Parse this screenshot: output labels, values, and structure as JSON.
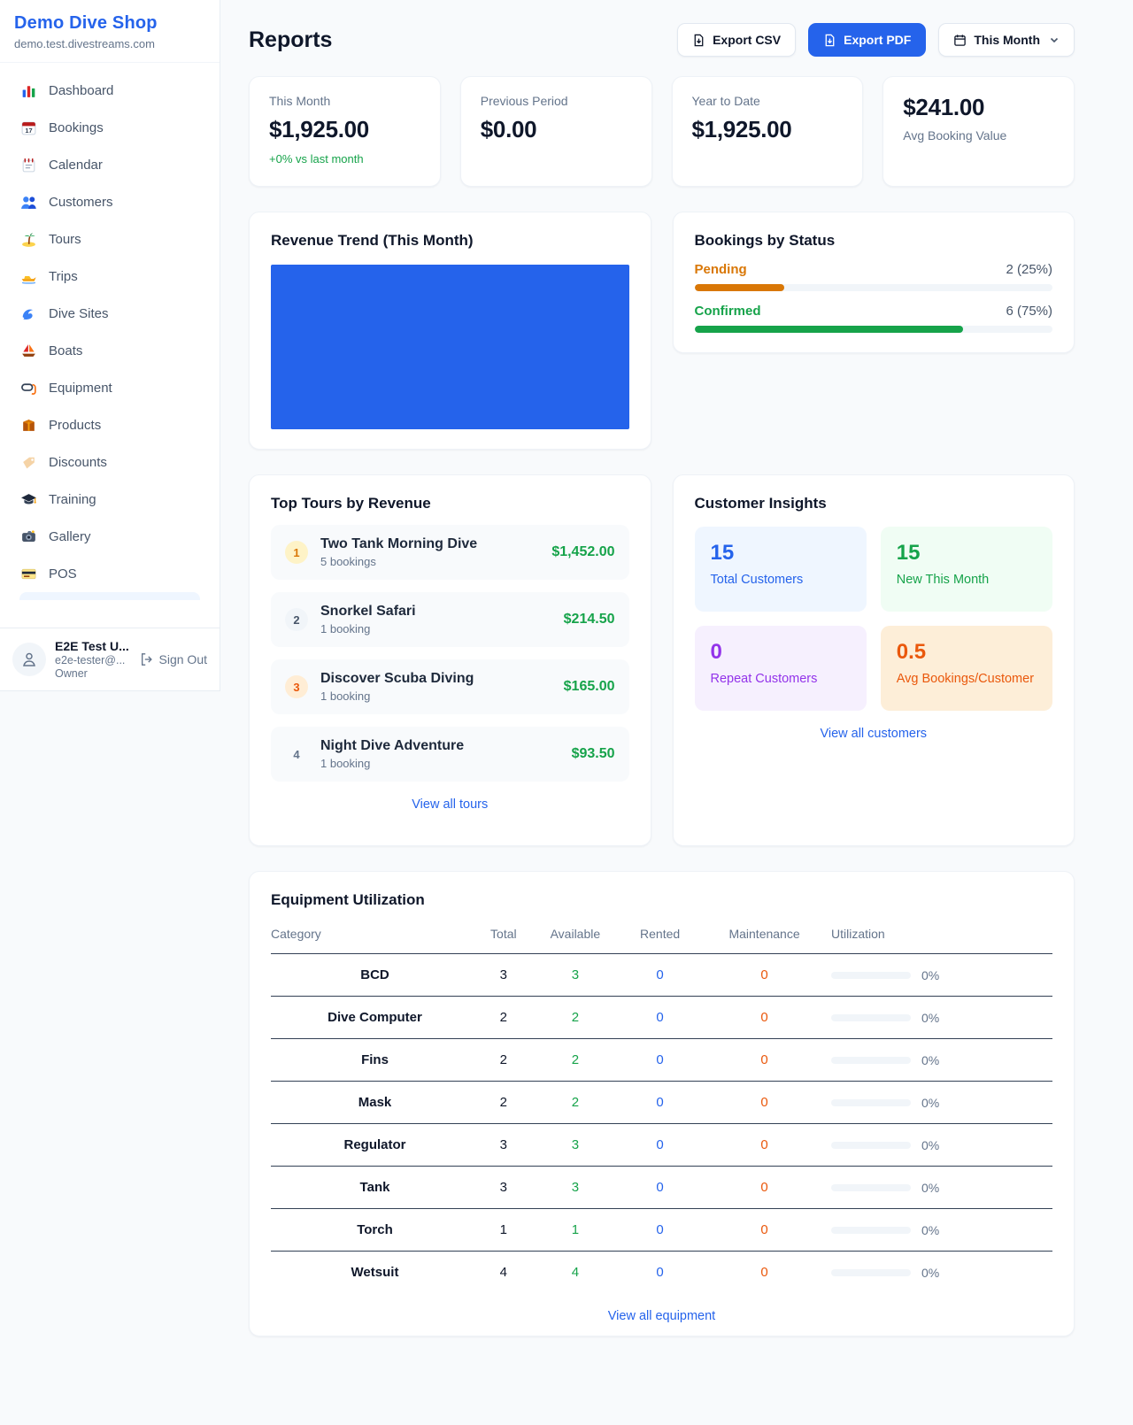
{
  "colors": {
    "accent": "#2563eb",
    "green": "#16a34a",
    "orange": "#ea580c",
    "amber": "#d97706",
    "purple": "#9333ea",
    "muted": "#64748b"
  },
  "sidebar": {
    "brand": {
      "name": "Demo Dive Shop",
      "domain": "demo.test.divestreams.com"
    },
    "items": [
      {
        "label": "Dashboard",
        "icon": "bar-chart"
      },
      {
        "label": "Bookings",
        "icon": "calendar-date"
      },
      {
        "label": "Calendar",
        "icon": "spiral-calendar"
      },
      {
        "label": "Customers",
        "icon": "people"
      },
      {
        "label": "Tours",
        "icon": "island"
      },
      {
        "label": "Trips",
        "icon": "speedboat"
      },
      {
        "label": "Dive Sites",
        "icon": "wave"
      },
      {
        "label": "Boats",
        "icon": "sailboat"
      },
      {
        "label": "Equipment",
        "icon": "dive-mask"
      },
      {
        "label": "Products",
        "icon": "package"
      },
      {
        "label": "Discounts",
        "icon": "tag"
      },
      {
        "label": "Training",
        "icon": "graduation-cap"
      },
      {
        "label": "Gallery",
        "icon": "camera"
      },
      {
        "label": "POS",
        "icon": "credit-card"
      }
    ],
    "user": {
      "name": "E2E Test U...",
      "email": "e2e-tester@...",
      "role": "Owner",
      "sign_out_label": "Sign Out"
    }
  },
  "header": {
    "title": "Reports",
    "export_csv_label": "Export CSV",
    "export_pdf_label": "Export PDF",
    "period_label": "This Month"
  },
  "stats": [
    {
      "label": "This Month",
      "value": "$1,925.00",
      "delta": "+0% vs last month",
      "value_first": false
    },
    {
      "label": "Previous Period",
      "value": "$0.00",
      "delta": "",
      "value_first": false
    },
    {
      "label": "Year to Date",
      "value": "$1,925.00",
      "delta": "",
      "value_first": false
    },
    {
      "label": "Avg Booking Value",
      "value": "$241.00",
      "delta": "",
      "value_first": true
    }
  ],
  "revenue_trend": {
    "title": "Revenue Trend (This Month)",
    "bar_color": "#2563eb"
  },
  "chart_data": {
    "type": "bar",
    "title": "Revenue Trend (This Month)",
    "categories": [
      "This Month"
    ],
    "values": [
      1925.0
    ],
    "xlabel": "",
    "ylabel": "",
    "note": "single full-width solid bar, no axes or labels shown"
  },
  "bookings_by_status": {
    "title": "Bookings by Status",
    "rows": [
      {
        "label": "Pending",
        "count_text": "2 (25%)",
        "percent": 25,
        "color": "#d97706"
      },
      {
        "label": "Confirmed",
        "count_text": "6 (75%)",
        "percent": 75,
        "color": "#16a34a"
      }
    ]
  },
  "top_tours": {
    "title": "Top Tours by Revenue",
    "link_label": "View all tours",
    "rows": [
      {
        "rank": "1",
        "name": "Two Tank Morning Dive",
        "bookings": "5 bookings",
        "amount": "$1,452.00",
        "badge_bg": "#fef3c7",
        "badge_fg": "#d97706"
      },
      {
        "rank": "2",
        "name": "Snorkel Safari",
        "bookings": "1 booking",
        "amount": "$214.50",
        "badge_bg": "#f1f5f9",
        "badge_fg": "#475569"
      },
      {
        "rank": "3",
        "name": "Discover Scuba Diving",
        "bookings": "1 booking",
        "amount": "$165.00",
        "badge_bg": "#ffedd5",
        "badge_fg": "#ea580c"
      },
      {
        "rank": "4",
        "name": "Night Dive Adventure",
        "bookings": "1 booking",
        "amount": "$93.50",
        "badge_bg": "transparent",
        "badge_fg": "#64748b"
      }
    ]
  },
  "customer_insights": {
    "title": "Customer Insights",
    "link_label": "View all customers",
    "tiles": [
      {
        "value": "15",
        "label": "Total Customers",
        "fg": "#2563eb",
        "bg": "#eff6ff"
      },
      {
        "value": "15",
        "label": "New This Month",
        "fg": "#16a34a",
        "bg": "#f0fdf4"
      },
      {
        "value": "0",
        "label": "Repeat Customers",
        "fg": "#9333ea",
        "bg": "#f6f0fe"
      },
      {
        "value": "0.5",
        "label": "Avg Bookings/Customer",
        "fg": "#ea580c",
        "bg": "#fdeed8"
      }
    ]
  },
  "equipment": {
    "title": "Equipment Utilization",
    "link_label": "View all equipment",
    "columns": [
      "Category",
      "Total",
      "Available",
      "Rented",
      "Maintenance",
      "Utilization"
    ],
    "rows": [
      {
        "category": "BCD",
        "total": "3",
        "available": "3",
        "rented": "0",
        "maintenance": "0",
        "utilization_pct": 0,
        "utilization_text": "0%"
      },
      {
        "category": "Dive Computer",
        "total": "2",
        "available": "2",
        "rented": "0",
        "maintenance": "0",
        "utilization_pct": 0,
        "utilization_text": "0%"
      },
      {
        "category": "Fins",
        "total": "2",
        "available": "2",
        "rented": "0",
        "maintenance": "0",
        "utilization_pct": 0,
        "utilization_text": "0%"
      },
      {
        "category": "Mask",
        "total": "2",
        "available": "2",
        "rented": "0",
        "maintenance": "0",
        "utilization_pct": 0,
        "utilization_text": "0%"
      },
      {
        "category": "Regulator",
        "total": "3",
        "available": "3",
        "rented": "0",
        "maintenance": "0",
        "utilization_pct": 0,
        "utilization_text": "0%"
      },
      {
        "category": "Tank",
        "total": "3",
        "available": "3",
        "rented": "0",
        "maintenance": "0",
        "utilization_pct": 0,
        "utilization_text": "0%"
      },
      {
        "category": "Torch",
        "total": "1",
        "available": "1",
        "rented": "0",
        "maintenance": "0",
        "utilization_pct": 0,
        "utilization_text": "0%"
      },
      {
        "category": "Wetsuit",
        "total": "4",
        "available": "4",
        "rented": "0",
        "maintenance": "0",
        "utilization_pct": 0,
        "utilization_text": "0%"
      }
    ]
  }
}
